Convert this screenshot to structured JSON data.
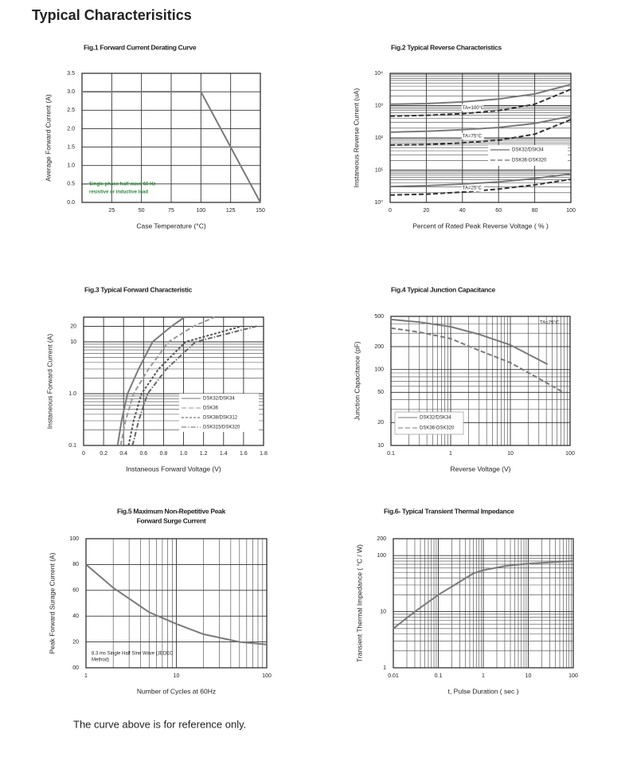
{
  "title": "Typical  Characterisitics",
  "note": "The curve above is for reference only.",
  "chart_data": [
    {
      "type": "line",
      "title": "Fig.1  Forward Current Derating Curve",
      "xlabel": "Case Temperature (°C)",
      "ylabel": "Average Forward Current (A)",
      "xlim": [
        0,
        150
      ],
      "ylim": [
        0,
        3.5
      ],
      "xlog": false,
      "ylog": false,
      "grid": true,
      "xticks": [
        25,
        50,
        75,
        100,
        125,
        150
      ],
      "yticks": [
        {
          "value": 0,
          "label": "0.0"
        },
        0.5,
        {
          "value": 1,
          "label": "1.0"
        },
        1.5,
        {
          "value": 2,
          "label": "2.0"
        },
        2.5,
        {
          "value": 3,
          "label": "3.0"
        },
        3.5
      ],
      "annotation": [
        "Single phase half-wave 60 Hz",
        "resistive or inductive load"
      ],
      "annotation_color": "#2f8a3c",
      "series": [
        {
          "color": "#7a7a7a",
          "style": "solid",
          "x": [
            0,
            100,
            150
          ],
          "values": [
            3,
            3,
            0
          ]
        }
      ]
    },
    {
      "type": "line",
      "title": "Fig.2  Typical Reverse Characteristics",
      "xlabel": "Percent of Rated Peak Reverse Voltage ( % )",
      "ylabel": "Instaneous Reverse Current (uA)",
      "xlim": [
        0,
        100
      ],
      "ylim": [
        1,
        10000
      ],
      "xlog": false,
      "ylog": true,
      "grid": true,
      "xticks": [
        0,
        20,
        40,
        60,
        80,
        100
      ],
      "yticks": [
        {
          "value": 1,
          "label": "10⁰"
        },
        {
          "value": 10,
          "label": "10¹"
        },
        {
          "value": 100,
          "label": "10²"
        },
        {
          "value": 1000,
          "label": "10³"
        },
        {
          "value": 10000,
          "label": "10⁴"
        }
      ],
      "x": [
        0,
        20,
        40,
        60,
        80,
        100
      ],
      "legend": [
        {
          "name": "DSK32/DSK34",
          "style": "solid"
        },
        {
          "name": "DSK36-DSK320",
          "style": "dash"
        }
      ],
      "groups": [
        {
          "label": "TA=100°C",
          "series": [
            {
              "color": "#7a7a7a",
              "values": [
                1100,
                1150,
                1300,
                1600,
                2300,
                4500
              ]
            },
            {
              "color": "#333333",
              "values": [
                470,
                500,
                560,
                700,
                1100,
                3200
              ]
            }
          ]
        },
        {
          "label": "TA=75°C",
          "series": [
            {
              "color": "#7a7a7a",
              "values": [
                150,
                160,
                180,
                210,
                280,
                470
              ]
            },
            {
              "color": "#333333",
              "values": [
                60,
                62,
                70,
                85,
                130,
                370
              ]
            }
          ]
        },
        {
          "label": "TA=25°C",
          "series": [
            {
              "color": "#7a7a7a",
              "values": [
                3.1,
                3.3,
                3.7,
                4.3,
                5.5,
                7.7
              ]
            },
            {
              "color": "#333333",
              "values": [
                1.7,
                1.8,
                2.1,
                2.6,
                3.5,
                5.2
              ]
            }
          ]
        }
      ]
    },
    {
      "type": "line",
      "title": "Fig.3  Typical Forward Characteristic",
      "xlabel": "Instaneous Forward Voltage (V)",
      "ylabel": "Instaneous Forward Current (A)",
      "xlim": [
        0,
        1.8
      ],
      "ylim": [
        0.1,
        30
      ],
      "xlog": false,
      "ylog": true,
      "grid": true,
      "xticks": [
        0,
        0.2,
        0.4,
        0.6,
        0.8,
        {
          "value": 1,
          "label": "1.0"
        },
        1.2,
        1.4,
        1.6,
        1.8
      ],
      "yticks": [
        0.1,
        {
          "value": 1,
          "label": "1.0"
        },
        10,
        20
      ],
      "series": [
        {
          "name": "DSK32/DSK34",
          "color": "#7a7a7a",
          "style": "solid",
          "x": [
            0.34,
            0.38,
            0.44,
            0.55,
            0.69,
            0.88,
            1.01
          ],
          "values": [
            0.1,
            0.3,
            1,
            3,
            10,
            20,
            30
          ]
        },
        {
          "name": "DSK36",
          "color": "#9a9a9a",
          "style": "dash",
          "x": [
            0.37,
            0.42,
            0.5,
            0.65,
            0.85,
            1.1,
            1.31
          ],
          "values": [
            0.1,
            0.3,
            1,
            3,
            10,
            20,
            30
          ]
        },
        {
          "name": "DSK38/DSK312",
          "color": "#555555",
          "style": "short-dash",
          "x": [
            0.45,
            0.5,
            0.58,
            0.75,
            1.02,
            1.58
          ],
          "values": [
            0.1,
            0.3,
            1,
            3,
            10,
            20
          ]
        },
        {
          "name": "DSK315/DSK320",
          "color": "#666666",
          "style": "dash-dot",
          "x": [
            0.49,
            0.55,
            0.64,
            0.83,
            1.12,
            1.73
          ],
          "values": [
            0.1,
            0.3,
            1,
            3,
            10,
            20
          ]
        }
      ]
    },
    {
      "type": "line",
      "title": "Fig.4  Typical Junction Capacitance",
      "xlabel": "Reverse  Voltage (V)",
      "ylabel": "Junction Capacitance (pF)",
      "xlim": [
        0.1,
        100
      ],
      "ylim": [
        10,
        500
      ],
      "xlog": true,
      "ylog": true,
      "grid": true,
      "xticks": [
        0.1,
        1,
        10,
        100
      ],
      "yticks": [
        10,
        20,
        50,
        100,
        200,
        500
      ],
      "annotation": [
        "TA=25°C"
      ],
      "series": [
        {
          "name": "DSK32/DSK34",
          "color": "#7a7a7a",
          "style": "solid",
          "x": [
            0.1,
            0.3,
            1,
            3,
            10,
            42
          ],
          "values": [
            455,
            420,
            365,
            290,
            210,
            117
          ]
        },
        {
          "name": "DSK36-DSK320",
          "color": "#7a7a7a",
          "style": "dash",
          "x": [
            0.1,
            0.3,
            1,
            3,
            10,
            30,
            81
          ],
          "values": [
            350,
            310,
            255,
            178,
            123,
            76,
            49
          ]
        }
      ]
    },
    {
      "type": "line",
      "title": "Fig.5  Maximum Non-Repetitive Peak",
      "subtitle": "Forward Surge Current",
      "xlabel": "Number of Cycles at 60Hz",
      "ylabel": "Peak Forward Surage Current (A)",
      "xlim": [
        1,
        100
      ],
      "ylim": [
        0,
        100
      ],
      "xlog": true,
      "ylog": false,
      "grid": true,
      "xticks": [
        1,
        10,
        100
      ],
      "yticks": [
        {
          "value": 0,
          "label": "00"
        },
        20,
        40,
        60,
        80,
        100
      ],
      "annotation": [
        "8.3 ms Single Half Sine Wave (JEDEC",
        "Method)"
      ],
      "series": [
        {
          "color": "#7a7a7a",
          "style": "solid",
          "x": [
            1,
            2,
            5,
            10,
            20,
            50,
            100
          ],
          "values": [
            80,
            62,
            43,
            34,
            26,
            20,
            18
          ]
        }
      ]
    },
    {
      "type": "line",
      "title": "Fig.6- Typical Transient Thermal Impedance",
      "xlabel": "t, Pulse Duration ( sec )",
      "ylabel": "Transient Thermal Impedance ( °C / W)",
      "xlim": [
        0.01,
        100
      ],
      "ylim": [
        1,
        200
      ],
      "xlog": true,
      "ylog": true,
      "grid": true,
      "xticks": [
        0.01,
        0.1,
        1,
        10,
        100
      ],
      "yticks": [
        1,
        10,
        100,
        200
      ],
      "series": [
        {
          "color": "#7a7a7a",
          "style": "solid",
          "x": [
            0.01,
            0.03,
            0.1,
            0.6,
            1,
            3,
            10,
            100
          ],
          "values": [
            5,
            10,
            20,
            48,
            55,
            65,
            72,
            80
          ]
        }
      ]
    }
  ]
}
